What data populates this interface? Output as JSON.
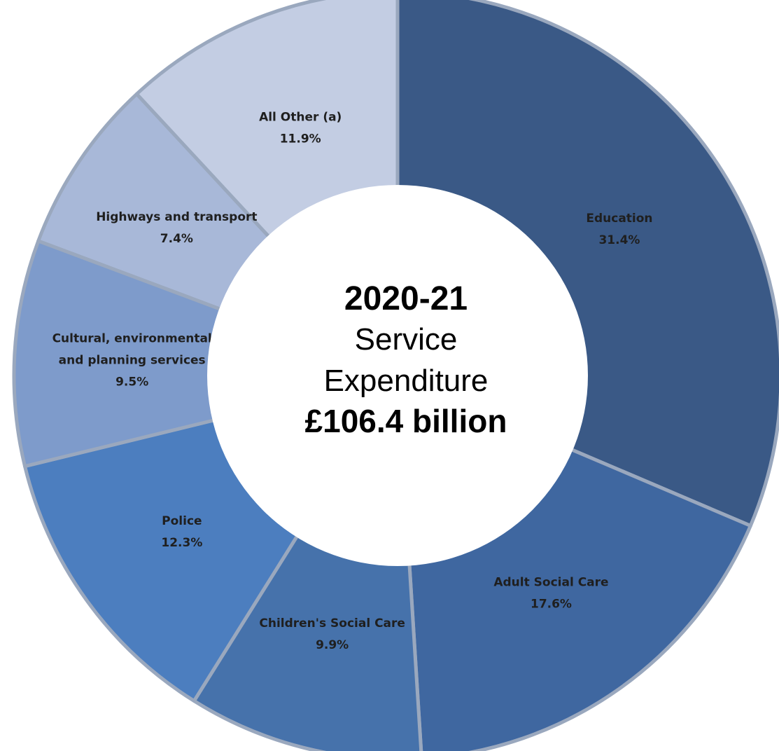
{
  "chart_data": {
    "type": "pie",
    "style": "donut",
    "start_angle": "12 o'clock",
    "direction": "clockwise",
    "center_text": {
      "line1": "2020-21",
      "line2": "Service",
      "line3": "Expenditure",
      "line4": "£106.4 billion"
    },
    "slices": [
      {
        "label": "Education",
        "label_lines": [
          "Education"
        ],
        "percent_label": "31.4%",
        "value": 31.4,
        "color": "#3a5986"
      },
      {
        "label": "Adult Social Care",
        "label_lines": [
          "Adult Social Care"
        ],
        "percent_label": "17.6%",
        "value": 17.6,
        "color": "#3f67a0"
      },
      {
        "label": "Children's Social Care",
        "label_lines": [
          "Children's Social Care"
        ],
        "percent_label": "9.9%",
        "value": 9.9,
        "color": "#4672ab"
      },
      {
        "label": "Police",
        "label_lines": [
          "Police"
        ],
        "percent_label": "12.3%",
        "value": 12.3,
        "color": "#4c7ebf"
      },
      {
        "label": "Cultural, environmental and planning services",
        "label_lines": [
          "Cultural, environmental",
          "and planning services"
        ],
        "percent_label": "9.5%",
        "value": 9.5,
        "color": "#7e9bcb"
      },
      {
        "label": "Highways and transport",
        "label_lines": [
          "Highways and transport"
        ],
        "percent_label": "7.4%",
        "value": 7.4,
        "color": "#a8b8d8"
      },
      {
        "label": "All Other (a)",
        "label_lines": [
          "All Other (a)"
        ],
        "percent_label": "11.9%",
        "value": 11.9,
        "color": "#c3cde3"
      }
    ]
  }
}
